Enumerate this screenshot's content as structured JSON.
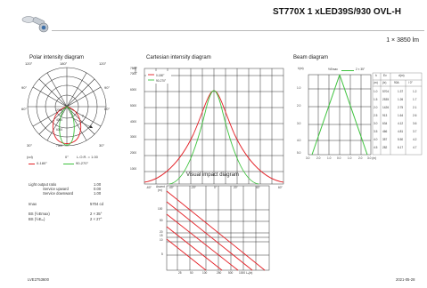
{
  "header": {
    "title": "ST770X 1 xLED39S/930 OVL-H",
    "subtitle": "1 × 3850 lm"
  },
  "polar": {
    "title": "Polar intensity diagram",
    "angles": {
      "top_left": "120°",
      "top_mid": "180°",
      "top_right": "120°",
      "left_upper": "90°",
      "right_upper": "90°",
      "left_mid": "60°",
      "right_mid": "60°",
      "left_low": "30°",
      "right_low": "30°"
    },
    "radial_labels": [
      "2000",
      "4000",
      "6000",
      "7500"
    ],
    "gamma_label": "γ",
    "unit": "(cd)",
    "zero_label": "0°",
    "lor_label": "L.O.R. = 1.00",
    "legend": [
      "0-180°",
      "90-270°"
    ]
  },
  "cartesian": {
    "title": "Cartesian intensity diagram",
    "unit": "(cd)",
    "y_ticks": [
      "7500",
      "7000",
      "6000",
      "5000",
      "4000",
      "3000",
      "2000",
      "1000"
    ],
    "x_ticks": [
      "-60°",
      "-40°",
      "-20°",
      "0°",
      "20°",
      "40°",
      "60°"
    ],
    "legend": [
      "0-180°",
      "90-270°"
    ]
  },
  "beam": {
    "title": "Beam diagram",
    "y_unit": "h(m)",
    "legend_label": "½Emax",
    "legend_value": "2 × 35°",
    "y_ticks": [
      "1.0",
      "2.0",
      "3.0",
      "4.0",
      "5.0"
    ],
    "x_ticks": [
      "3.0",
      "2.0",
      "1.0",
      "0.0",
      "1.0",
      "2.0",
      "3.0 (m)"
    ],
    "table_headers": [
      "h",
      "Ev",
      "d(m)"
    ],
    "table_subheaders": [
      "(m)",
      "(lx)",
      "90A",
      "/ 0°"
    ],
    "table_rows": [
      [
        "1.0",
        "5704",
        "1.37",
        "1.2"
      ],
      [
        "1.5",
        "2535",
        "1.26",
        "1.7"
      ],
      [
        "2.0",
        "1426",
        "2.75",
        "2.1"
      ],
      [
        "2.5",
        "913",
        "1.64",
        "2.6"
      ],
      [
        "3.0",
        "634",
        "4.12",
        "3.6"
      ],
      [
        "3.5",
        "466",
        "4.81",
        "3.7"
      ],
      [
        "4.0",
        "357",
        "5.50",
        "4.2"
      ],
      [
        "4.5",
        "282",
        "6.17",
        "4.7"
      ]
    ]
  },
  "visual": {
    "title": "Visual impact diagram",
    "y_unit_top": "Ascent",
    "y_unit_bottom": "(m)",
    "y_ticks": [
      "100",
      "50",
      "20",
      "15",
      "10",
      "5"
    ],
    "x_ticks": [
      "25",
      "50",
      "100",
      "250",
      "500",
      "1000",
      "L(cd/m²)"
    ],
    "x_axis_label": "1000 Lₐ(lx)"
  },
  "info": {
    "rows": [
      {
        "label": "Light output ratio",
        "value": "1.00"
      },
      {
        "label": "Service upward",
        "value": "0.00"
      },
      {
        "label": "Service downward",
        "value": "1.00"
      }
    ],
    "imax_label": "Imax",
    "imax_value": "5704 cd",
    "bs1_label": "BS (½Emax)",
    "bs1_value": "2 × 35°",
    "bs2_label": "BS (½Eₘ)",
    "bs2_value": "2 × 27°"
  },
  "footer": {
    "code": "LVE2753600",
    "date": "2021-05-28"
  },
  "colors": {
    "red": "#e31e24",
    "green": "#3cc23c"
  }
}
